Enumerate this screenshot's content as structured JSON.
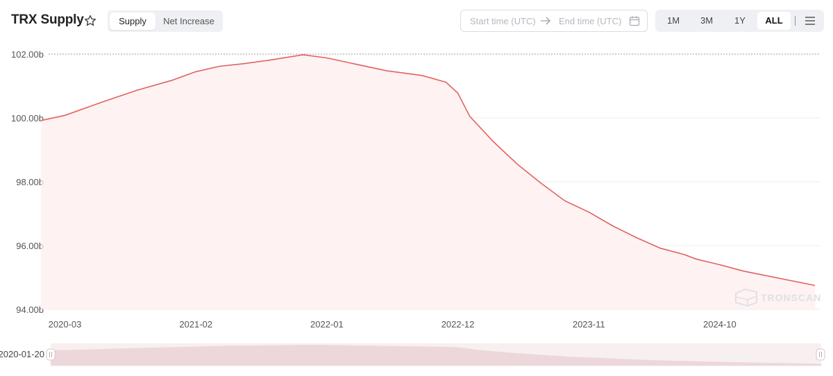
{
  "header": {
    "title": "TRX Supply",
    "tabs": [
      {
        "label": "Supply",
        "active": true
      },
      {
        "label": "Net Increase",
        "active": false
      }
    ]
  },
  "date_range": {
    "start_placeholder": "Start time (UTC)",
    "end_placeholder": "End time (UTC)"
  },
  "range_buttons": [
    {
      "label": "1M",
      "active": false
    },
    {
      "label": "3M",
      "active": false
    },
    {
      "label": "1Y",
      "active": false
    },
    {
      "label": "ALL",
      "active": true
    }
  ],
  "watermark": "TRONSCAN",
  "zoom": {
    "start_label": "2020-01-20"
  },
  "colors": {
    "line": "#e06262",
    "area": "#fdeeee",
    "accent_bg": "#eef0f3"
  },
  "chart_data": {
    "type": "area",
    "title": "",
    "xlabel": "",
    "ylabel": "",
    "y_tick_labels": [
      "102.00b",
      "100.00b",
      "98.00b",
      "96.00b",
      "94.00b"
    ],
    "x_tick_labels": [
      "2020-03",
      "2021-02",
      "2022-01",
      "2022-12",
      "2023-11",
      "2024-10"
    ],
    "ylim": [
      94.0,
      102.0
    ],
    "unit": "billion TRX",
    "series": [
      {
        "x": [
          "2020-01",
          "2020-03",
          "2020-06",
          "2020-09",
          "2020-12",
          "2021-02",
          "2021-04",
          "2021-06",
          "2021-08",
          "2021-10",
          "2021-11",
          "2022-01",
          "2022-03",
          "2022-06",
          "2022-09",
          "2022-11",
          "2022-12",
          "2023-01",
          "2023-03",
          "2023-05",
          "2023-07",
          "2023-09",
          "2023-11",
          "2024-01",
          "2024-03",
          "2024-05",
          "2024-07",
          "2024-08",
          "2024-10",
          "2024-12",
          "2025-02",
          "2025-04",
          "2025-06"
        ],
        "values": [
          99.92,
          100.08,
          100.48,
          100.86,
          101.18,
          101.45,
          101.62,
          101.7,
          101.8,
          101.92,
          101.98,
          101.88,
          101.72,
          101.48,
          101.33,
          101.12,
          100.78,
          100.05,
          99.25,
          98.55,
          97.95,
          97.4,
          97.05,
          96.62,
          96.25,
          95.92,
          95.72,
          95.58,
          95.4,
          95.2,
          95.05,
          94.9,
          94.75
        ]
      }
    ],
    "grid": true,
    "legend": "none"
  }
}
